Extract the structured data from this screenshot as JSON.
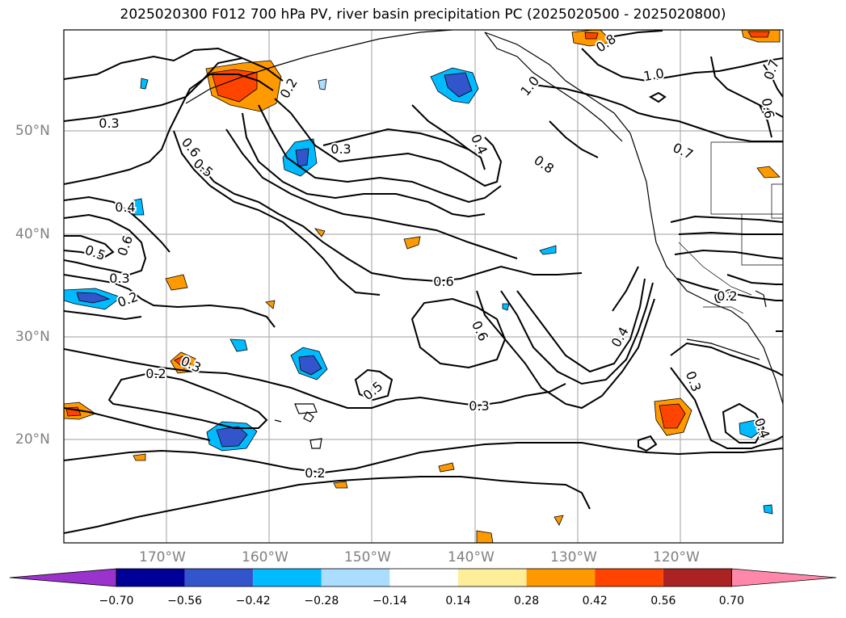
{
  "title": "2025020300 F012 700 hPa PV, river basin precipitation PC (2025020500 - 2025020800)",
  "lat_labels": [
    "50°N",
    "40°N",
    "30°N",
    "20°N"
  ],
  "lon_labels": [
    "170°W",
    "160°W",
    "150°W",
    "140°W",
    "130°W",
    "120°W"
  ],
  "contour_labels": [
    "0.3",
    "0.6",
    "0.5",
    "0.2",
    "0.3",
    "0.4",
    "0.6",
    "0.5",
    "0.3",
    "0.2",
    "0.4",
    "0.8",
    "1.0",
    "0.8",
    "1.0",
    "0.7",
    "0.6",
    "0.7",
    "0.6",
    "0.6",
    "0.5",
    "0.3",
    "0.2",
    "0.2",
    "0.2",
    "0.4",
    "0.3",
    "0.4",
    "0.2",
    "0.3"
  ],
  "colorbar": {
    "ticks": [
      "−0.70",
      "−0.56",
      "−0.42",
      "−0.28",
      "−0.14",
      "0.14",
      "0.28",
      "0.42",
      "0.56",
      "0.70"
    ],
    "colors": [
      "#9933cc",
      "#000099",
      "#3355cc",
      "#00bbff",
      "#aaddff",
      "#ffffff",
      "#ffee99",
      "#ff9900",
      "#ff4400",
      "#aa2222",
      "#ff88aa"
    ]
  }
}
